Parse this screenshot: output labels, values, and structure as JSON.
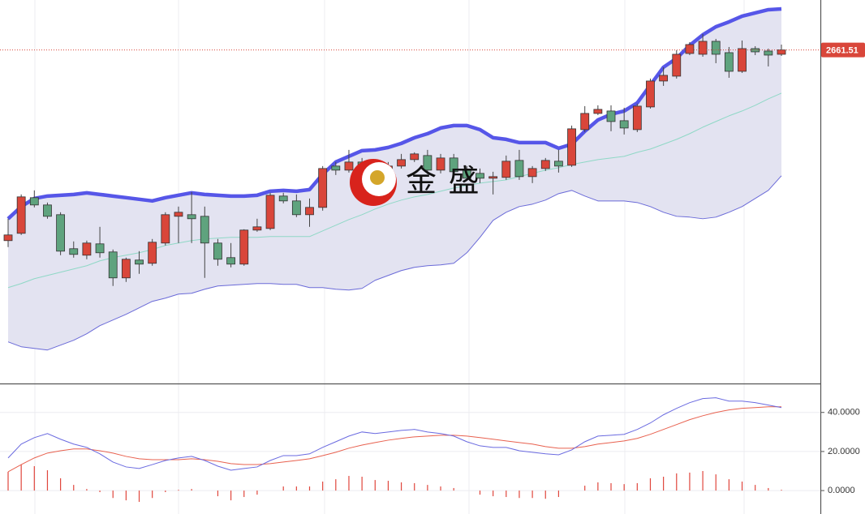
{
  "chart_data": [
    {
      "type": "candlestick",
      "open": [
        2590.9,
        2593.6,
        2606.8,
        2604.1,
        2600.5,
        2587.9,
        2585.5,
        2589.7,
        2586.7,
        2577.1,
        2583.7,
        2582.5,
        2590,
        2599.9,
        2600.5,
        2599.9,
        2590,
        2584.6,
        2582.2,
        2594.8,
        2595.4,
        2607.4,
        2605.6,
        2600.5,
        2603.2,
        2618.5,
        2617,
        2620,
        2618.5,
        2613.4,
        2618.5,
        2620.9,
        2622.4,
        2617,
        2621.5,
        2617,
        2615.8,
        2614,
        2614.3,
        2620.6,
        2614.6,
        2617.6,
        2620.3,
        2618.8,
        2632,
        2638,
        2638.9,
        2635.3,
        2632,
        2640.4,
        2650,
        2651.8,
        2660.2,
        2659.9,
        2664.7,
        2660.5,
        2653.6,
        2662,
        2661.1,
        2659.9
      ],
      "high": [
        2599,
        2608,
        2609.5,
        2605,
        2601.4,
        2590.6,
        2590.9,
        2596,
        2587.6,
        2584.6,
        2587,
        2591.5,
        2601.4,
        2603.5,
        2608.9,
        2603.5,
        2591.5,
        2590,
        2595.1,
        2599,
        2608.6,
        2608.6,
        2608,
        2606.5,
        2618.5,
        2620,
        2624.5,
        2621.5,
        2620.6,
        2620,
        2623,
        2623.6,
        2624.5,
        2623,
        2623,
        2618.5,
        2617.6,
        2616.4,
        2622.4,
        2624.5,
        2618.5,
        2621.5,
        2624.5,
        2633.5,
        2640.7,
        2641,
        2641,
        2640.1,
        2641.6,
        2650.9,
        2655.1,
        2661.4,
        2664.4,
        2667.4,
        2665.6,
        2662.6,
        2665,
        2662.9,
        2662,
        2663.5
      ],
      "low": [
        2588.5,
        2593,
        2603.2,
        2599,
        2585.5,
        2584.6,
        2584,
        2584.6,
        2574.1,
        2575.6,
        2578.6,
        2581.6,
        2589.1,
        2590,
        2590,
        2577.1,
        2581.6,
        2581,
        2581.6,
        2594.2,
        2594.8,
        2604.7,
        2599.6,
        2596,
        2602,
        2615.2,
        2616.1,
        2611,
        2610.4,
        2612.5,
        2617.6,
        2620,
        2615.5,
        2615.8,
        2615.5,
        2613.4,
        2612.2,
        2608,
        2613.4,
        2613.4,
        2612.2,
        2616.7,
        2616.1,
        2618.2,
        2631.1,
        2637.4,
        2631.4,
        2630.2,
        2631.1,
        2639.8,
        2648.2,
        2650.9,
        2659.6,
        2659,
        2656.6,
        2651.2,
        2653,
        2659.6,
        2655.4,
        2659.3
      ],
      "close": [
        2593,
        2607.1,
        2604.1,
        2599.9,
        2587,
        2585.8,
        2590,
        2586.4,
        2577.1,
        2584,
        2582.2,
        2590.3,
        2600.5,
        2601.4,
        2599,
        2590,
        2584,
        2582.2,
        2594.8,
        2596,
        2607.7,
        2605.6,
        2600.5,
        2603.2,
        2617.6,
        2617,
        2620,
        2612.5,
        2611.6,
        2618.5,
        2620.9,
        2623,
        2617,
        2621.5,
        2616.4,
        2614,
        2614,
        2614.6,
        2620.3,
        2614.6,
        2617.6,
        2620.6,
        2618.5,
        2632.3,
        2638,
        2639.5,
        2635,
        2632.6,
        2640.7,
        2650,
        2652.1,
        2659.9,
        2663.5,
        2664.7,
        2659.9,
        2653.6,
        2662,
        2660.8,
        2659.6,
        2661.51
      ],
      "upper": [
        2599,
        2603.5,
        2606.5,
        2607.4,
        2607.7,
        2608,
        2608.6,
        2608,
        2607.4,
        2606.8,
        2606.2,
        2605.6,
        2606.8,
        2607.7,
        2608.6,
        2608,
        2607.7,
        2607.4,
        2607.4,
        2607.7,
        2609.2,
        2609.5,
        2609.2,
        2609.8,
        2615.5,
        2620,
        2622.1,
        2624.2,
        2624.5,
        2625.4,
        2626.9,
        2629,
        2630.5,
        2632.6,
        2633.5,
        2633.5,
        2632,
        2629,
        2628.4,
        2627.2,
        2627.2,
        2627.2,
        2625.1,
        2626.6,
        2631.4,
        2635.6,
        2637.7,
        2638.9,
        2641.9,
        2648.5,
        2655.1,
        2658.4,
        2663.2,
        2667.1,
        2670.1,
        2671.9,
        2674,
        2675.2,
        2676.4,
        2676.7
      ],
      "middle": [
        2573.5,
        2575,
        2576.8,
        2578,
        2579.2,
        2580.4,
        2581.6,
        2583.4,
        2584.6,
        2585.5,
        2586.4,
        2587.6,
        2589.1,
        2590,
        2590.9,
        2591.5,
        2591.8,
        2592.1,
        2592.1,
        2592.1,
        2592.4,
        2592.4,
        2592.4,
        2592.4,
        2594.5,
        2596.6,
        2598.7,
        2600.5,
        2602.6,
        2604.4,
        2605.9,
        2607.1,
        2608,
        2609.2,
        2610.4,
        2611.3,
        2612.2,
        2612.8,
        2613.4,
        2614.6,
        2615.8,
        2617,
        2617.9,
        2619.1,
        2620,
        2620.9,
        2621.5,
        2622.1,
        2623.6,
        2624.8,
        2626.6,
        2628.4,
        2630.5,
        2632.9,
        2635,
        2637.1,
        2638.9,
        2641,
        2643.4,
        2645.5
      ],
      "lower": [
        2553.4,
        2551.6,
        2551,
        2550.4,
        2552.2,
        2554,
        2556.4,
        2559.4,
        2561.5,
        2563.6,
        2566,
        2568.4,
        2569.6,
        2571.1,
        2571.4,
        2572.9,
        2574.1,
        2574.4,
        2574.7,
        2575,
        2575,
        2574.7,
        2574.7,
        2573.5,
        2573.5,
        2572.9,
        2572.6,
        2573.2,
        2576.2,
        2578,
        2579.8,
        2581,
        2581.6,
        2581.9,
        2582.5,
        2586.4,
        2592.1,
        2598.4,
        2601.4,
        2603.5,
        2604.4,
        2605.9,
        2608.3,
        2609.5,
        2607.4,
        2605.6,
        2605.6,
        2605.6,
        2605,
        2603.5,
        2601.4,
        2599.9,
        2599.6,
        2599,
        2599.6,
        2601.4,
        2603.5,
        2606.5,
        2609.5,
        2614.9
      ],
      "up_color": "#d9463a",
      "down_color": "#5fa37e",
      "band_color": "#e3e3f1",
      "upper_color": "#5656e8",
      "middle_color": "#8fd8c6",
      "lower_color": "#6a6ad8",
      "ylim": [
        2538,
        2680
      ],
      "price_line": true,
      "watermark": "金 盛"
    },
    {
      "type": "macd",
      "dif": [
        16.7,
        23.8,
        27.1,
        29.2,
        26.3,
        23.8,
        22.1,
        18.8,
        14.6,
        12.1,
        11.3,
        13.3,
        15.4,
        16.7,
        17.5,
        15.4,
        12.5,
        10.4,
        11.3,
        12.1,
        15.4,
        17.9,
        17.9,
        18.8,
        22.1,
        25,
        27.9,
        30,
        29.2,
        30,
        30.8,
        31.3,
        30,
        29.2,
        27.9,
        25,
        22.9,
        22.1,
        22.1,
        20.4,
        19.6,
        18.8,
        18.3,
        20.8,
        25,
        27.9,
        28.3,
        28.8,
        31.3,
        34.6,
        38.8,
        42.1,
        45,
        47.1,
        47.5,
        45.8,
        45.8,
        45,
        43.8,
        42.5
      ],
      "dea": [
        9.6,
        13.3,
        16.7,
        19.2,
        20.4,
        21.3,
        21.3,
        20.4,
        19.2,
        17.5,
        16.3,
        15.8,
        15.8,
        15.8,
        16.3,
        15.8,
        15,
        13.8,
        13.3,
        13.3,
        13.8,
        14.6,
        15.4,
        16.3,
        17.9,
        19.6,
        21.7,
        23.3,
        24.6,
        25.8,
        26.7,
        27.5,
        27.9,
        28.3,
        28.3,
        27.9,
        27.1,
        26.3,
        25.4,
        24.6,
        23.8,
        22.5,
        21.7,
        21.7,
        22.5,
        23.8,
        24.6,
        25.4,
        26.7,
        28.8,
        31.3,
        33.8,
        36.3,
        38.3,
        40,
        41.3,
        42.1,
        42.5,
        42.9,
        42.9
      ],
      "hist": [
        9.6,
        13.3,
        12.5,
        10.4,
        6.3,
        2.9,
        0.8,
        -0.8,
        -3.8,
        -5,
        -5.8,
        -3.8,
        -0.8,
        0.4,
        0.8,
        0,
        -2.9,
        -5,
        -3.3,
        -2.1,
        0,
        2.1,
        2.1,
        2.1,
        4.6,
        5.8,
        7.5,
        7.1,
        5.4,
        5,
        4.2,
        3.8,
        2.9,
        2.1,
        1.3,
        0,
        -2.1,
        -2.9,
        -3.3,
        -3.8,
        -3.8,
        -4.2,
        -3.3,
        0,
        2.5,
        4.2,
        3.8,
        3.3,
        3.8,
        6.3,
        7.1,
        8.8,
        9.2,
        10,
        8.3,
        5.8,
        4.6,
        2.9,
        1.3,
        0.4
      ],
      "dif_color": "#6a6ae0",
      "dea_color": "#e8614f",
      "hist_color": "#e0463c",
      "ylim": [
        -12,
        54
      ],
      "yticks": [
        {
          "value": 40,
          "label": "40.0000"
        },
        {
          "value": 20,
          "label": "20.0000"
        },
        {
          "value": 0,
          "label": "0.0000"
        }
      ],
      "grid": true
    }
  ]
}
